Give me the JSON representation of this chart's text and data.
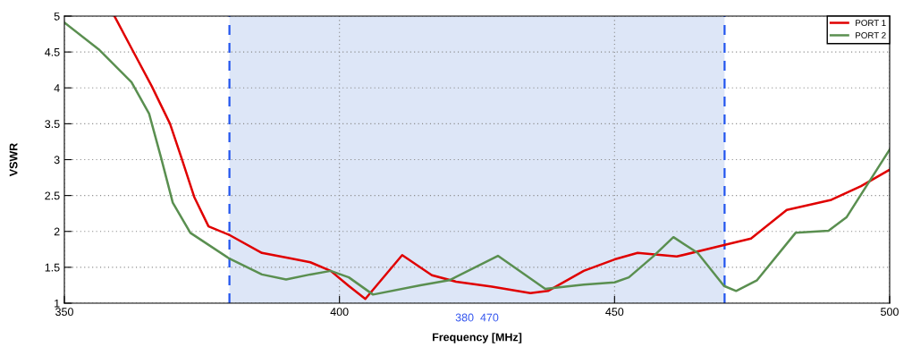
{
  "chart_data": {
    "type": "line",
    "xlabel": "Frequency [MHz]",
    "ylabel": "VSWR",
    "xlim": [
      350,
      500
    ],
    "ylim": [
      1,
      5
    ],
    "xticks": [
      350,
      400,
      450,
      500
    ],
    "yticks": [
      1,
      1.5,
      2,
      2.5,
      3,
      3.5,
      4,
      4.5,
      5
    ],
    "grid": true,
    "legend": "top right",
    "line_style": "solid",
    "marker": "none",
    "series": [
      {
        "name": "PORT 1",
        "color": "#e00000",
        "x": [
          359.1,
          362.7,
          365.9,
          369.2,
          371.3,
          373.6,
          376.2,
          380,
          385.9,
          391.4,
          394.7,
          398.4,
          401.7,
          404.7,
          411.4,
          416.8,
          421.2,
          427.7,
          434.7,
          437.9,
          444.4,
          450,
          454.2,
          461.3,
          469.9,
          474.8,
          481.3,
          489.4,
          494.8,
          500
        ],
        "values": [
          5.0,
          4.48,
          4.02,
          3.5,
          3.02,
          2.48,
          2.07,
          1.95,
          1.7,
          1.62,
          1.57,
          1.45,
          1.24,
          1.06,
          1.67,
          1.39,
          1.3,
          1.23,
          1.14,
          1.17,
          1.45,
          1.61,
          1.7,
          1.65,
          1.81,
          1.9,
          2.3,
          2.44,
          2.63,
          2.86
        ]
      },
      {
        "name": "PORT 2",
        "color": "#5a8f50",
        "x": [
          350,
          356.2,
          362.2,
          365.4,
          367.6,
          369.7,
          372.9,
          380,
          385.9,
          390.3,
          394.7,
          398.4,
          401.7,
          406.1,
          414.7,
          420,
          428.8,
          437.4,
          444.4,
          450,
          452.6,
          457,
          460.7,
          465.1,
          469.9,
          472.1,
          475.9,
          482.9,
          488.9,
          492.2,
          500
        ],
        "values": [
          4.91,
          4.54,
          4.08,
          3.64,
          3.02,
          2.4,
          1.98,
          1.62,
          1.4,
          1.33,
          1.4,
          1.45,
          1.36,
          1.12,
          1.25,
          1.32,
          1.66,
          1.2,
          1.26,
          1.29,
          1.36,
          1.65,
          1.92,
          1.7,
          1.24,
          1.17,
          1.32,
          1.98,
          2.01,
          2.2,
          3.14
        ]
      }
    ],
    "bands": [
      {
        "axis": "x",
        "from": 380,
        "to": 470,
        "color": "#dde6f7"
      }
    ],
    "ref_lines": [
      {
        "axis": "x",
        "value": 380,
        "color": "#2255ee",
        "line_style": "dashed"
      },
      {
        "axis": "x",
        "value": 470,
        "color": "#2255ee",
        "line_style": "dashed"
      }
    ],
    "annotations": [
      "380  470"
    ]
  }
}
